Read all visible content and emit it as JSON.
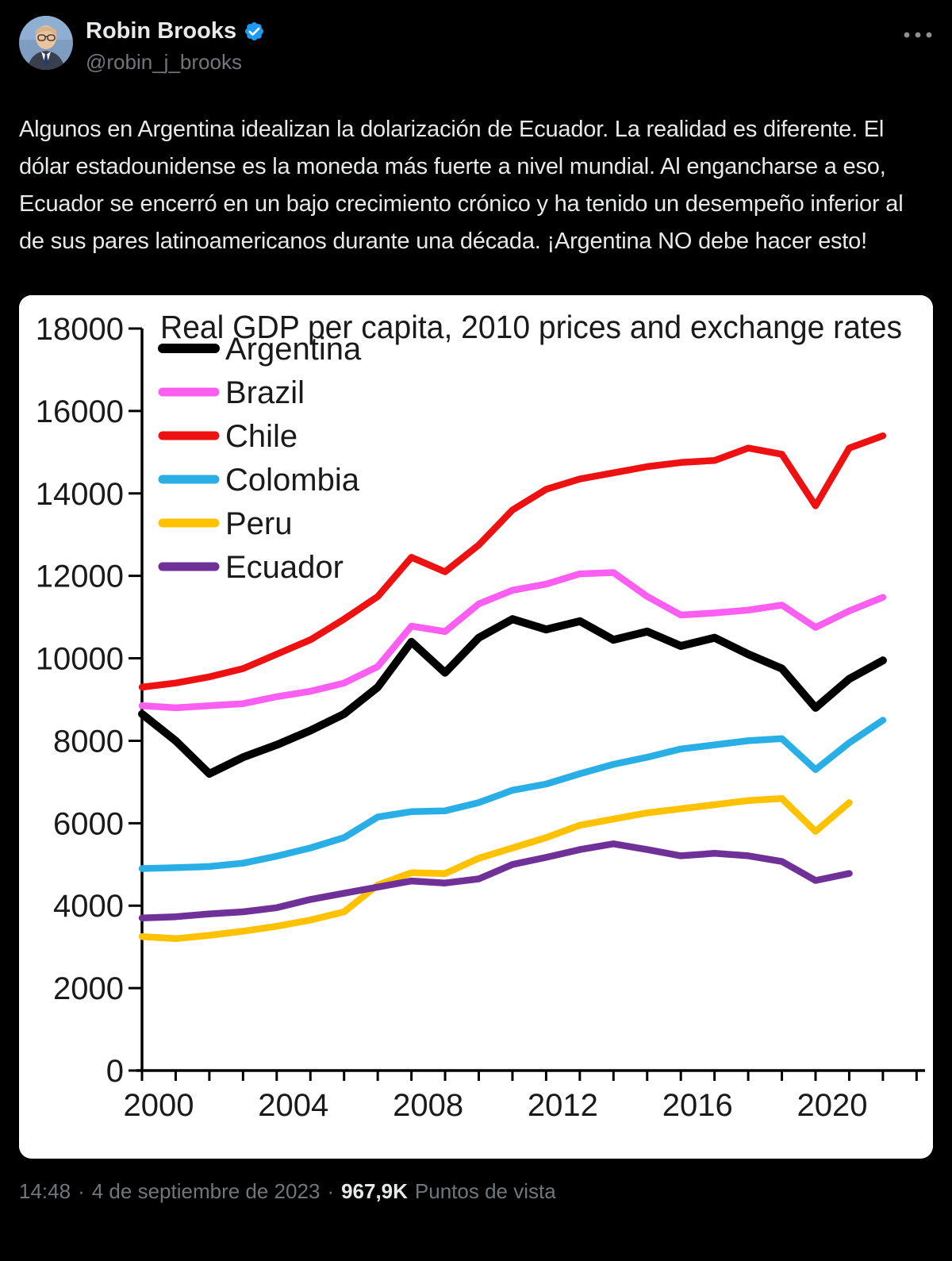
{
  "header": {
    "display_name": "Robin Brooks",
    "handle": "@robin_j_brooks",
    "verified_icon": "verified-badge-icon",
    "more_icon": "more-horizontal-icon"
  },
  "tweet": {
    "text": "Algunos en Argentina idealizan la dolarización de Ecuador. La realidad es diferente. El dólar estadounidense es la moneda más fuerte a nivel mundial. Al engancharse a eso, Ecuador se encerró en un bajo crecimiento crónico y ha tenido un desempeño inferior al de sus pares latinoamericanos durante una década. ¡Argentina NO debe hacer esto!"
  },
  "chart_data": {
    "type": "line",
    "title": "Real GDP per capita, 2010  prices and exchange rates",
    "xlabel": "",
    "ylabel": "",
    "ylim": [
      0,
      18000
    ],
    "ytick_step": 2000,
    "grid": false,
    "legend_position": "upper-left",
    "x": [
      2000,
      2001,
      2002,
      2003,
      2004,
      2005,
      2006,
      2007,
      2008,
      2009,
      2010,
      2011,
      2012,
      2013,
      2014,
      2015,
      2016,
      2017,
      2018,
      2019,
      2020,
      2021,
      2022
    ],
    "xtick_labels": [
      2000,
      2004,
      2008,
      2012,
      2016,
      2020
    ],
    "series": [
      {
        "name": "Argentina",
        "color": "#000000",
        "values": [
          8650,
          8000,
          7200,
          7600,
          7900,
          8250,
          8650,
          9300,
          10400,
          9650,
          10500,
          10950,
          10700,
          10900,
          10450,
          10650,
          10300,
          10500,
          10100,
          9750,
          8800,
          9500,
          9950
        ]
      },
      {
        "name": "Brazil",
        "color": "#fb5ff1",
        "values": [
          8850,
          8800,
          8850,
          8900,
          9070,
          9200,
          9400,
          9800,
          10780,
          10650,
          11320,
          11650,
          11800,
          12050,
          12080,
          11500,
          11050,
          11100,
          11170,
          11290,
          10750,
          11150,
          11480
        ]
      },
      {
        "name": "Chile",
        "color": "#ed1111",
        "values": [
          9300,
          9400,
          9550,
          9750,
          10100,
          10450,
          10950,
          11500,
          12450,
          12100,
          12750,
          13600,
          14100,
          14350,
          14500,
          14650,
          14750,
          14800,
          15100,
          14950,
          13700,
          15100,
          15400
        ]
      },
      {
        "name": "Colombia",
        "color": "#2aaee6",
        "values": [
          4900,
          4920,
          4950,
          5030,
          5200,
          5400,
          5650,
          6150,
          6280,
          6300,
          6500,
          6800,
          6950,
          7200,
          7430,
          7600,
          7800,
          7900,
          8000,
          8050,
          7300,
          7950,
          8500
        ]
      },
      {
        "name": "Peru",
        "color": "#fec200",
        "values": [
          3250,
          3200,
          3280,
          3380,
          3500,
          3650,
          3850,
          4500,
          4800,
          4780,
          5150,
          5400,
          5650,
          5950,
          6100,
          6250,
          6350,
          6450,
          6550,
          6600,
          5800,
          6500
        ]
      },
      {
        "name": "Ecuador",
        "color": "#6f3198",
        "values": [
          3700,
          3730,
          3800,
          3850,
          3950,
          4150,
          4300,
          4450,
          4600,
          4550,
          4650,
          5000,
          5170,
          5360,
          5500,
          5360,
          5210,
          5270,
          5210,
          5070,
          4610,
          4780
        ]
      }
    ]
  },
  "footer": {
    "time": "14:48",
    "separator": "·",
    "date": "4 de septiembre de 2023",
    "views_count": "967,9K",
    "views_label": "Puntos de vista"
  },
  "colors": {
    "background": "#000000",
    "text_primary": "#e7e9ea",
    "text_secondary": "#71767b",
    "accent": "#1d9bf0",
    "chart_background": "#ffffff",
    "chart_axis": "#000000"
  }
}
